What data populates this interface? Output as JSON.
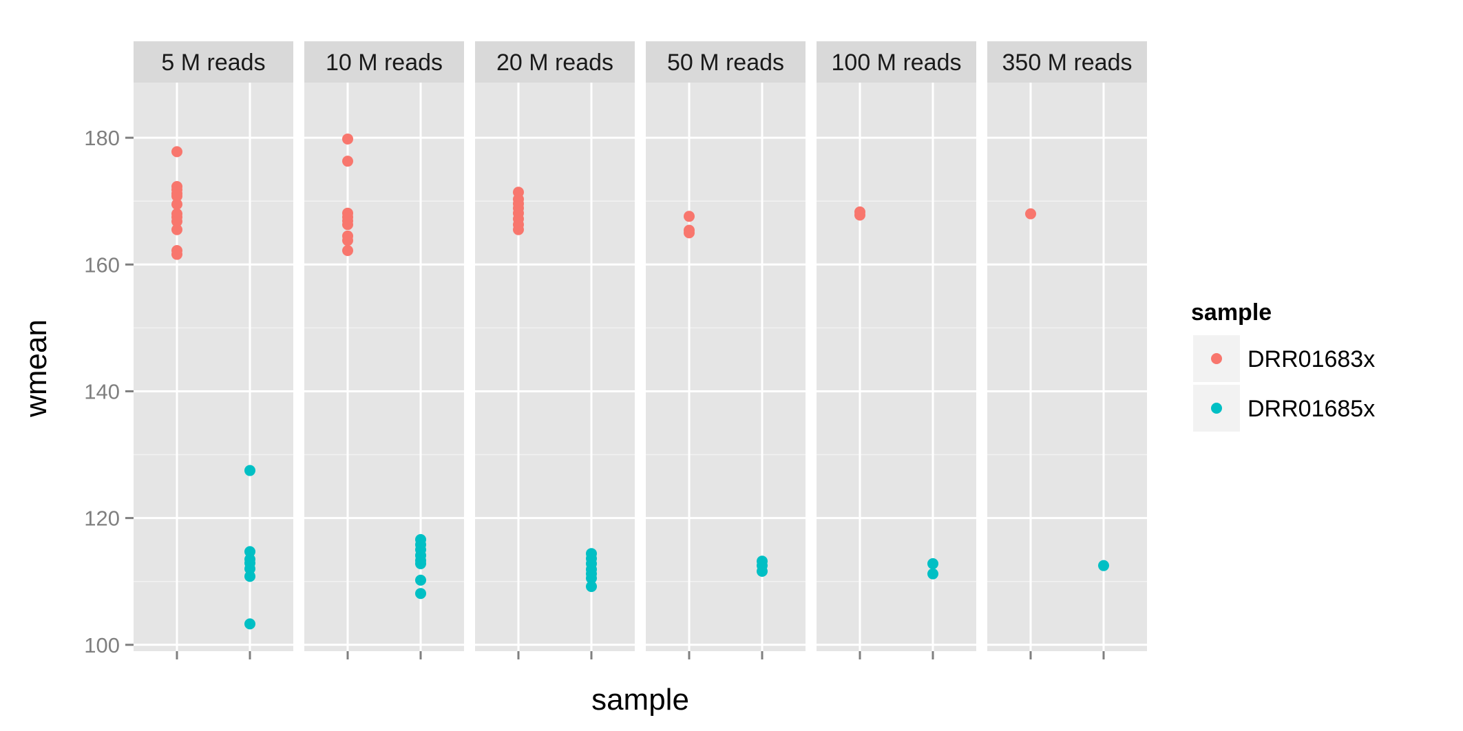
{
  "chart_data": {
    "type": "scatter",
    "facet_by": "reads",
    "facets": [
      "5 M reads",
      "10 M reads",
      "20 M reads",
      "50 M reads",
      "100 M reads",
      "350 M reads"
    ],
    "categories": [
      "DRR01683x",
      "DRR01685x"
    ],
    "xlabel": "sample",
    "ylabel": "wmean",
    "ylim": [
      99,
      188.7
    ],
    "yticks": [
      100,
      120,
      140,
      160,
      180
    ],
    "grid": true,
    "x_tick_labels_visible": false,
    "legend": {
      "title": "sample",
      "position": "right",
      "entries": [
        "DRR01683x",
        "DRR01685x"
      ]
    },
    "series": [
      {
        "name": "DRR01683x",
        "color": "#F8766D",
        "values": [
          [
            177.8,
            172.3,
            171.8,
            171.2,
            170.8,
            169.5,
            168.0,
            167.5,
            166.8,
            165.5,
            162.2,
            161.6
          ],
          [
            179.8,
            176.3,
            168.1,
            167.5,
            166.9,
            166.3,
            164.5,
            163.8,
            162.2
          ],
          [
            171.4,
            170.3,
            169.6,
            168.9,
            168.1,
            167.2,
            166.3,
            165.5
          ],
          [
            167.6,
            165.4,
            165.0
          ],
          [
            168.3,
            167.8
          ],
          [
            168.0
          ]
        ]
      },
      {
        "name": "DRR01685x",
        "color": "#00BFC4",
        "values": [
          [
            127.5,
            114.7,
            113.5,
            112.9,
            112.0,
            110.8,
            103.3
          ],
          [
            116.6,
            115.8,
            115.0,
            114.1,
            113.3,
            112.8,
            110.2,
            108.1
          ],
          [
            114.4,
            113.6,
            112.8,
            111.9,
            111.2,
            110.5,
            109.2
          ],
          [
            113.2,
            112.5,
            111.6
          ],
          [
            112.8,
            111.2
          ],
          [
            112.5
          ]
        ]
      }
    ]
  }
}
